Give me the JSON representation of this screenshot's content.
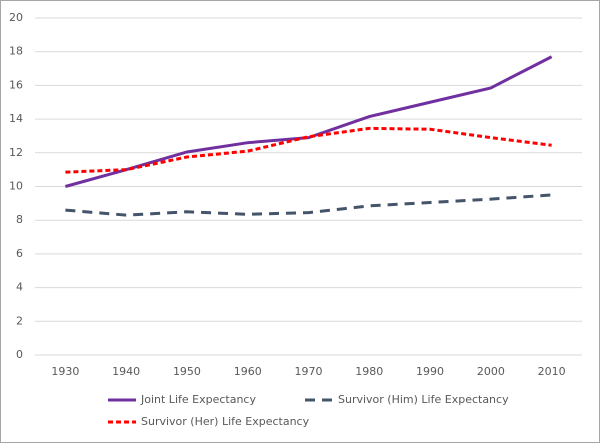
{
  "chart_data": {
    "type": "line",
    "categories": [
      "1930",
      "1940",
      "1950",
      "1960",
      "1970",
      "1980",
      "1990",
      "2000",
      "2010"
    ],
    "series": [
      {
        "name": "Joint Life Expectancy",
        "color": "#7030a0",
        "line_style": "solid",
        "values": [
          10.0,
          11.0,
          12.05,
          12.6,
          12.9,
          14.15,
          15.0,
          15.85,
          17.7
        ]
      },
      {
        "name": "Survivor (Him) Life Expectancy",
        "color": "#44546a",
        "line_style": "long-dash",
        "values": [
          8.6,
          8.3,
          8.5,
          8.35,
          8.45,
          8.85,
          9.05,
          9.25,
          9.5
        ]
      },
      {
        "name": "Survivor (Her) Life Expectancy",
        "color": "#ff0000",
        "line_style": "short-dash",
        "values": [
          10.85,
          11.0,
          11.75,
          12.1,
          12.95,
          13.45,
          13.4,
          12.9,
          12.45
        ]
      }
    ],
    "ylim": [
      0,
      20
    ],
    "yticks": [
      0,
      2,
      4,
      6,
      8,
      10,
      12,
      14,
      16,
      18,
      20
    ],
    "grid": true
  }
}
